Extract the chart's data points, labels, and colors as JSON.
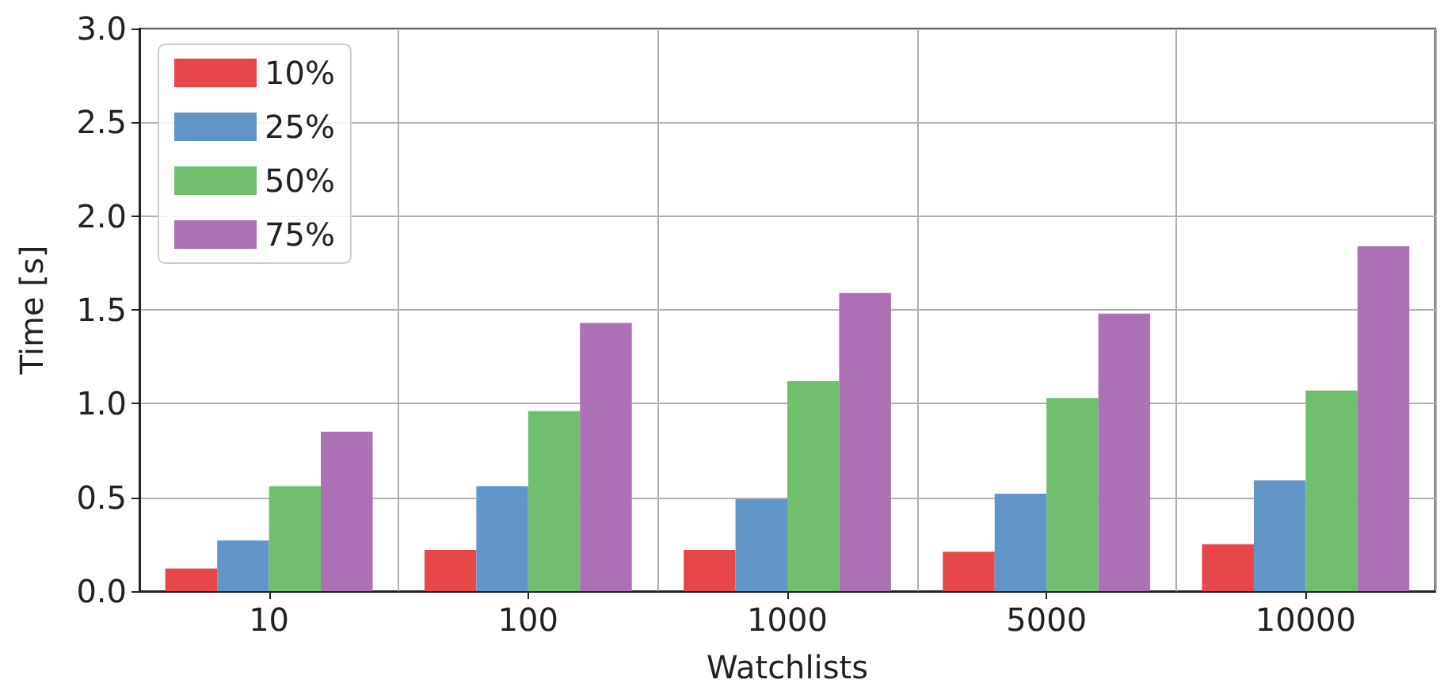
{
  "chart_data": {
    "type": "bar",
    "xlabel": "Watchlists",
    "ylabel": "Time [s]",
    "categories": [
      "10",
      "100",
      "1000",
      "5000",
      "10000"
    ],
    "series": [
      {
        "name": "10%",
        "color": "#e8474a",
        "values": [
          0.12,
          0.22,
          0.22,
          0.21,
          0.25
        ]
      },
      {
        "name": "25%",
        "color": "#6097c8",
        "values": [
          0.27,
          0.56,
          0.49,
          0.52,
          0.59
        ]
      },
      {
        "name": "50%",
        "color": "#70bf6e",
        "values": [
          0.56,
          0.96,
          1.12,
          1.03,
          1.07
        ]
      },
      {
        "name": "75%",
        "color": "#ab71b4",
        "values": [
          0.85,
          1.43,
          1.59,
          1.48,
          1.84
        ]
      }
    ],
    "ylim": [
      0,
      3
    ],
    "yticks": [
      {
        "value": 0,
        "label": "0.0"
      },
      0.5,
      {
        "value": 1,
        "label": "1.0"
      },
      1.5,
      {
        "value": 2,
        "label": "2.0"
      },
      2.5,
      {
        "value": 3,
        "label": "3.0"
      }
    ],
    "grid": true,
    "legend": "top left"
  }
}
